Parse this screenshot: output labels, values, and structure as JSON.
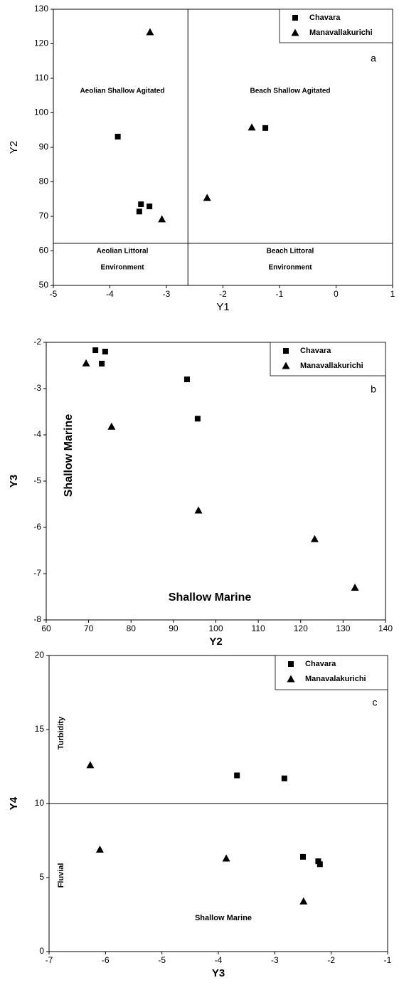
{
  "chart_data": [
    {
      "type": "scatter",
      "xlabel": "Y1",
      "ylabel": "Y2",
      "xlim": [
        -5,
        1
      ],
      "ylim": [
        50,
        130
      ],
      "xticks": [
        -5,
        -4,
        -3,
        -2,
        -1,
        0,
        1
      ],
      "yticks": [
        50,
        60,
        70,
        80,
        90,
        100,
        110,
        120,
        130
      ],
      "vline": -2.62,
      "hline": 62.2,
      "annotations": [
        "a",
        "Aeolian Shallow Agitated",
        "Beach Shallow Agitated",
        "Aeolian Littoral",
        "Environment",
        "Beach Littoral",
        "Environment"
      ],
      "series": [
        {
          "name": "Chavara",
          "marker": "square",
          "color": "#000000",
          "x": [
            -3.86,
            -3.45,
            -3.48,
            -3.3,
            -1.25
          ],
          "values": [
            93.1,
            73.5,
            71.4,
            72.9,
            95.6
          ]
        },
        {
          "name": "Manavallakurichi",
          "marker": "triangle",
          "color": "#000000",
          "x": [
            -3.29,
            -3.08,
            -2.28,
            -1.49
          ],
          "values": [
            123.4,
            69.2,
            75.4,
            95.8
          ]
        }
      ]
    },
    {
      "type": "scatter",
      "xlabel": "Y2",
      "ylabel": "Y3",
      "xlim": [
        60,
        140
      ],
      "ylim": [
        -8,
        -2
      ],
      "xticks": [
        60,
        70,
        80,
        90,
        100,
        110,
        120,
        130,
        140
      ],
      "yticks": [
        -8,
        -7,
        -6,
        -5,
        -4,
        -3,
        -2
      ],
      "annotations": [
        "b",
        "Shallow Marine",
        "Shallow Marine"
      ],
      "series": [
        {
          "name": "Chavara",
          "marker": "square",
          "color": "#000000",
          "x": [
            71.6,
            73.9,
            73.1,
            93.2,
            95.7
          ],
          "values": [
            -2.17,
            -2.2,
            -2.46,
            -2.8,
            -3.65
          ]
        },
        {
          "name": "Manavallakurichi",
          "marker": "triangle",
          "color": "#000000",
          "x": [
            69.4,
            75.4,
            95.9,
            123.3,
            132.8
          ],
          "values": [
            -2.45,
            -3.82,
            -5.63,
            -6.25,
            -7.3
          ]
        }
      ]
    },
    {
      "type": "scatter",
      "xlabel": "Y3",
      "ylabel": "Y4",
      "xlim": [
        -7,
        -1
      ],
      "ylim": [
        0,
        20
      ],
      "xticks": [
        -7,
        -6,
        -5,
        -4,
        -3,
        -2,
        -1
      ],
      "yticks": [
        0,
        5,
        10,
        15,
        20
      ],
      "hline": 10,
      "annotations": [
        "c",
        "Turbidity",
        "Fluvial",
        "Shallow Marine"
      ],
      "series": [
        {
          "name": "Chavara",
          "marker": "square",
          "color": "#000000",
          "x": [
            -3.67,
            -2.83,
            -2.5,
            -2.23,
            -2.2
          ],
          "values": [
            11.9,
            11.7,
            6.4,
            6.1,
            5.9
          ]
        },
        {
          "name": "Manavalakurichi",
          "marker": "triangle",
          "color": "#000000",
          "x": [
            -6.27,
            -6.1,
            -3.86,
            -2.49
          ],
          "values": [
            12.6,
            6.9,
            6.3,
            3.4
          ]
        }
      ]
    }
  ]
}
